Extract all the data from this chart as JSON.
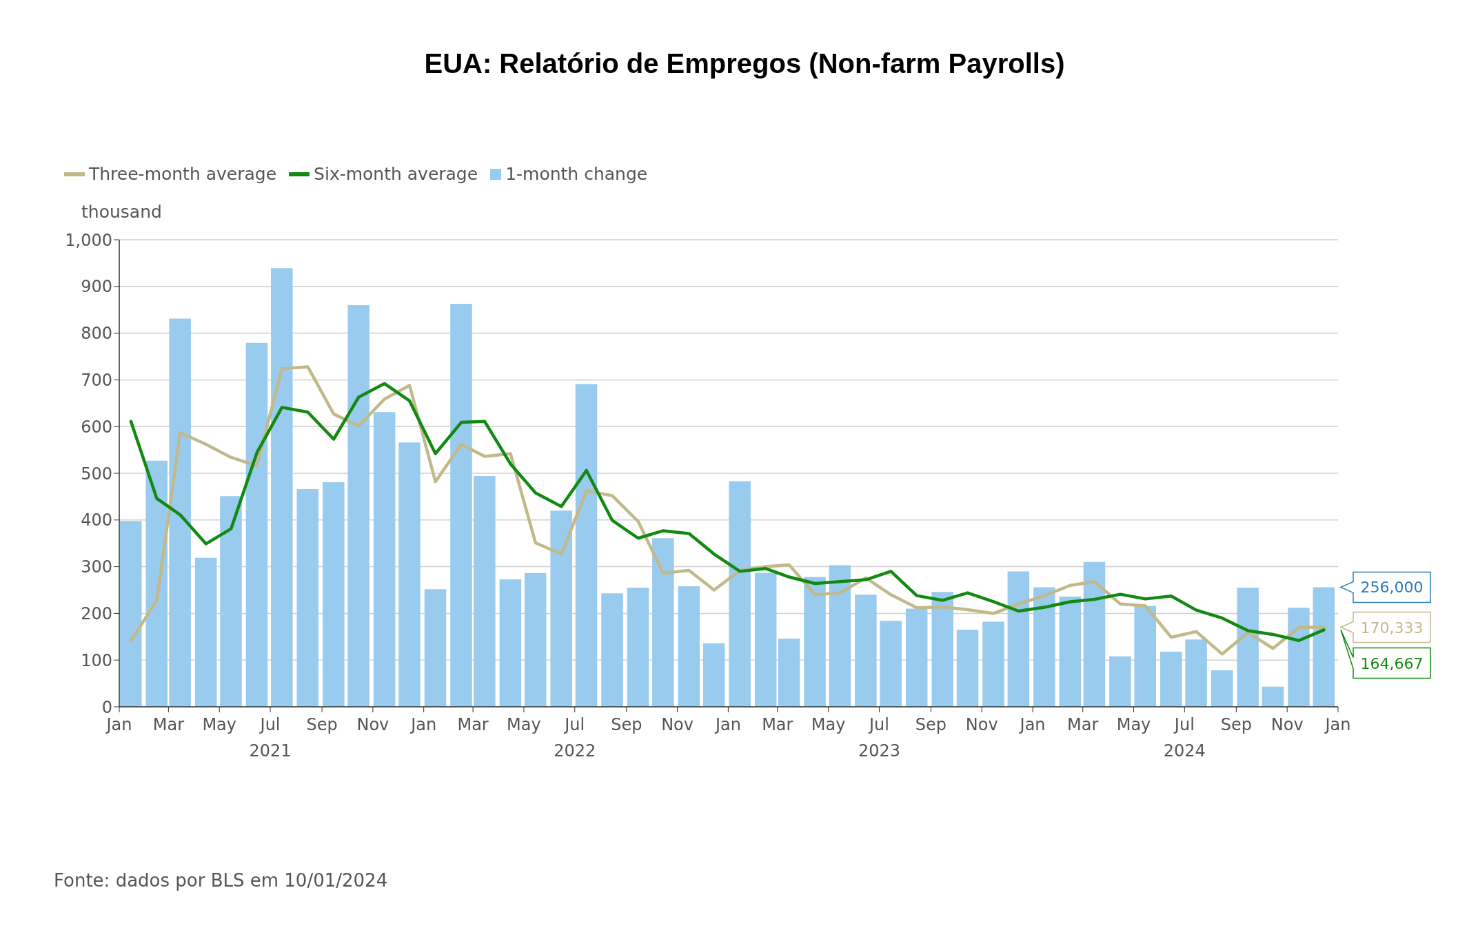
{
  "chart_data": {
    "type": "bar",
    "title": "EUA: Relatório de Empregos (Non-farm Payrolls)",
    "ylabel": "thousand",
    "x": [
      "2021-01-15",
      "2021-02-15",
      "2021-03-15",
      "2021-04-15",
      "2021-05-15",
      "2021-06-15",
      "2021-07-15",
      "2021-08-15",
      "2021-09-15",
      "2021-10-15",
      "2021-11-15",
      "2021-12-15",
      "2022-01-15",
      "2022-02-15",
      "2022-03-15",
      "2022-04-15",
      "2022-05-15",
      "2022-06-15",
      "2022-07-15",
      "2022-08-15",
      "2022-09-15",
      "2022-10-15",
      "2022-11-15",
      "2022-12-15",
      "2023-01-15",
      "2023-02-15",
      "2023-03-15",
      "2023-04-15",
      "2023-05-15",
      "2023-06-15",
      "2023-07-15",
      "2023-08-15",
      "2023-09-15",
      "2023-10-15",
      "2023-11-15",
      "2023-12-15",
      "2024-01-15",
      "2024-02-15",
      "2024-03-15",
      "2024-04-15",
      "2024-05-15",
      "2024-06-15",
      "2024-07-15",
      "2024-08-15",
      "2024-09-15",
      "2024-10-15",
      "2024-11-15",
      "2024-12-15"
    ],
    "series": [
      {
        "name": "Three-month average",
        "type": "line",
        "color": "#c2b98a",
        "values": [
          141,
          228,
          587,
          562,
          534,
          516,
          724,
          728,
          627,
          601,
          659,
          688,
          482,
          562,
          536,
          542,
          351,
          327,
          462,
          452,
          397,
          286,
          292,
          250,
          292,
          300,
          304,
          240,
          244,
          276,
          240,
          212,
          214,
          208,
          200,
          220,
          238,
          260,
          268,
          220,
          216,
          149,
          161,
          113,
          159,
          125,
          170,
          170.333
        ]
      },
      {
        "name": "Six-month average",
        "type": "line",
        "color": "#128a12",
        "values": [
          611,
          446,
          411,
          349,
          381,
          544,
          641,
          631,
          573,
          663,
          692,
          655,
          542,
          609,
          611,
          520,
          458,
          429,
          506,
          399,
          361,
          377,
          371,
          327,
          290,
          296,
          278,
          264,
          268,
          272,
          290,
          238,
          228,
          244,
          225,
          205,
          213,
          225,
          230,
          241,
          231,
          237,
          207,
          190,
          163,
          155,
          142,
          164.667
        ]
      },
      {
        "name": "1-month change",
        "color": "#99cbee",
        "values": [
          398,
          527,
          831,
          319,
          451,
          779,
          939,
          466,
          481,
          860,
          631,
          566,
          252,
          863,
          494,
          273,
          286,
          420,
          691,
          243,
          255,
          361,
          258,
          136,
          483,
          287,
          146,
          278,
          303,
          240,
          184,
          210,
          246,
          165,
          182,
          290,
          256,
          236,
          310,
          108,
          216,
          118,
          144,
          78,
          255,
          43,
          212,
          256
        ]
      }
    ],
    "annotations": [
      {
        "text": "170,333",
        "x": "2024-12-15",
        "y": 170.333
      },
      {
        "text": "164,667",
        "x": "2024-12-15",
        "y": 164.667
      },
      {
        "text": "256,000",
        "x": "2024-12-15",
        "y": 256
      },
      "Fonte: dados por BLS em 10/01/2024"
    ],
    "xlim": [
      "2021-01-01",
      "2025-01-01"
    ],
    "xticks": [
      {
        "value": "2021-01-01",
        "label": "Jan"
      },
      {
        "value": "2021-03-01",
        "label": "Mar"
      },
      {
        "value": "2021-05-01",
        "label": "May"
      },
      {
        "value": "2021-07-01",
        "label": "Jul\n2021"
      },
      {
        "value": "2021-09-01",
        "label": "Sep"
      },
      {
        "value": "2021-11-01",
        "label": "Nov"
      },
      {
        "value": "2022-01-01",
        "label": "Jan"
      },
      {
        "value": "2022-03-01",
        "label": "Mar"
      },
      {
        "value": "2022-05-01",
        "label": "May"
      },
      {
        "value": "2022-07-01",
        "label": "Jul\n2022"
      },
      {
        "value": "2022-09-01",
        "label": "Sep"
      },
      {
        "value": "2022-11-01",
        "label": "Nov"
      },
      {
        "value": "2023-01-01",
        "label": "Jan"
      },
      {
        "value": "2023-03-01",
        "label": "Mar"
      },
      {
        "value": "2023-05-01",
        "label": "May"
      },
      {
        "value": "2023-07-01",
        "label": "Jul\n2023"
      },
      {
        "value": "2023-09-01",
        "label": "Sep"
      },
      {
        "value": "2023-11-01",
        "label": "Nov"
      },
      {
        "value": "2024-01-01",
        "label": "Jan"
      },
      {
        "value": "2024-03-01",
        "label": "Mar"
      },
      {
        "value": "2024-05-01",
        "label": "May"
      },
      {
        "value": "2024-07-01",
        "label": "Jul\n2024"
      },
      {
        "value": "2024-09-01",
        "label": "Sep"
      },
      {
        "value": "2024-11-01",
        "label": "Nov"
      },
      {
        "value": "2025-01-01",
        "label": "Jan"
      }
    ],
    "ylim": [
      0,
      1000
    ],
    "yticks": [
      0,
      100,
      200,
      300,
      400,
      500,
      600,
      700,
      800,
      900,
      {
        "value": 1000,
        "label": "1,000"
      }
    ],
    "grid": "y",
    "legend": "top left"
  }
}
